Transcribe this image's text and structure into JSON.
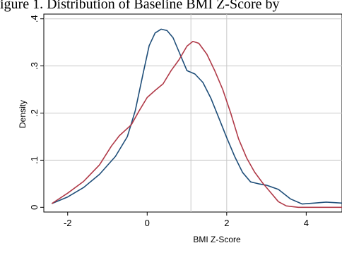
{
  "caption_fragment": "igure 1. Distribution of Baseline BMI Z-Score by",
  "chart_data": {
    "type": "line",
    "xlabel": "BMI Z-Score",
    "ylabel": "Density",
    "xlim": [
      -2.6,
      4.9
    ],
    "ylim": [
      -0.01,
      0.41
    ],
    "x_ticks": [
      -2,
      0,
      2,
      4
    ],
    "x_tick_labels": [
      "-2",
      "0",
      "2",
      "4"
    ],
    "y_ticks": [
      0,
      0.1,
      0.2,
      0.3,
      0.4
    ],
    "y_tick_labels": [
      "0",
      ".1",
      ".2",
      ".3",
      ".4"
    ],
    "grid": true,
    "grid_x_lines": [
      1.1,
      2.0
    ],
    "series": [
      {
        "color": "#1f4e79",
        "points": [
          [
            -2.4,
            0.008
          ],
          [
            -2.0,
            0.022
          ],
          [
            -1.6,
            0.042
          ],
          [
            -1.2,
            0.07
          ],
          [
            -0.8,
            0.108
          ],
          [
            -0.5,
            0.15
          ],
          [
            -0.3,
            0.205
          ],
          [
            -0.1,
            0.285
          ],
          [
            0.05,
            0.343
          ],
          [
            0.2,
            0.37
          ],
          [
            0.35,
            0.378
          ],
          [
            0.5,
            0.375
          ],
          [
            0.65,
            0.36
          ],
          [
            0.8,
            0.33
          ],
          [
            1.0,
            0.29
          ],
          [
            1.2,
            0.283
          ],
          [
            1.4,
            0.265
          ],
          [
            1.6,
            0.232
          ],
          [
            1.8,
            0.19
          ],
          [
            2.0,
            0.148
          ],
          [
            2.2,
            0.108
          ],
          [
            2.4,
            0.074
          ],
          [
            2.6,
            0.054
          ],
          [
            2.8,
            0.05
          ],
          [
            3.0,
            0.047
          ],
          [
            3.3,
            0.038
          ],
          [
            3.6,
            0.018
          ],
          [
            3.9,
            0.007
          ],
          [
            4.2,
            0.009
          ],
          [
            4.5,
            0.011
          ],
          [
            4.9,
            0.009
          ]
        ]
      },
      {
        "color": "#b03a48",
        "points": [
          [
            -2.4,
            0.008
          ],
          [
            -2.0,
            0.03
          ],
          [
            -1.6,
            0.055
          ],
          [
            -1.2,
            0.09
          ],
          [
            -0.9,
            0.13
          ],
          [
            -0.7,
            0.152
          ],
          [
            -0.4,
            0.175
          ],
          [
            -0.2,
            0.205
          ],
          [
            0.0,
            0.233
          ],
          [
            0.2,
            0.248
          ],
          [
            0.4,
            0.262
          ],
          [
            0.6,
            0.29
          ],
          [
            0.8,
            0.313
          ],
          [
            1.0,
            0.342
          ],
          [
            1.15,
            0.352
          ],
          [
            1.3,
            0.348
          ],
          [
            1.5,
            0.325
          ],
          [
            1.7,
            0.29
          ],
          [
            1.9,
            0.25
          ],
          [
            2.1,
            0.2
          ],
          [
            2.3,
            0.145
          ],
          [
            2.5,
            0.105
          ],
          [
            2.7,
            0.075
          ],
          [
            2.9,
            0.052
          ],
          [
            3.1,
            0.032
          ],
          [
            3.3,
            0.012
          ],
          [
            3.5,
            0.003
          ],
          [
            3.8,
            0.0
          ],
          [
            4.2,
            0.0
          ],
          [
            4.9,
            0.0
          ]
        ]
      }
    ]
  }
}
